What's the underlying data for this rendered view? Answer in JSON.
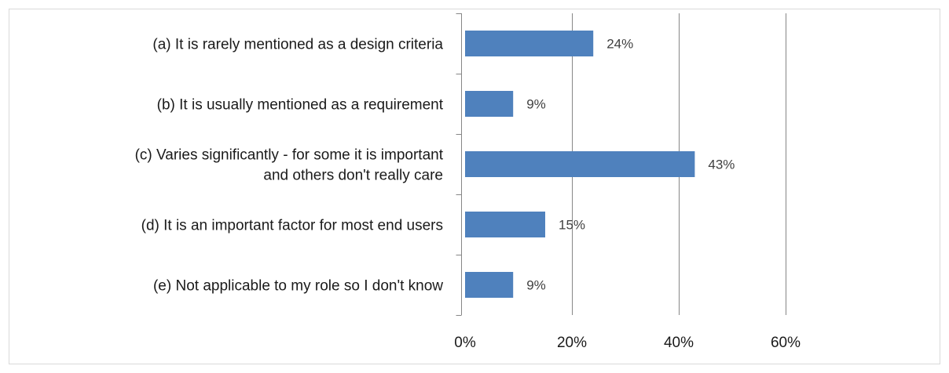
{
  "chart_data": {
    "type": "bar",
    "orientation": "horizontal",
    "categories": [
      "(a) It is rarely mentioned as a design criteria",
      "(b) It is usually mentioned as a requirement",
      "(c) Varies significantly - for some it is important and others don't really care",
      "(d) It is an important factor for most end users",
      "(e) Not applicable to my role so I don't know"
    ],
    "category_lines": [
      [
        "(a) It is rarely mentioned as a design criteria"
      ],
      [
        "(b) It is usually mentioned as a requirement"
      ],
      [
        "(c) Varies significantly - for some it is important",
        "and others don't really care"
      ],
      [
        "(d) It is an important factor for most end users"
      ],
      [
        "(e) Not applicable to my role so I don't know"
      ]
    ],
    "values": [
      24,
      9,
      43,
      15,
      9
    ],
    "data_labels": [
      "24%",
      "9%",
      "43%",
      "15%",
      "9%"
    ],
    "x_ticks": [
      0,
      20,
      40,
      60
    ],
    "x_tick_labels": [
      "0%",
      "20%",
      "40%",
      "60%"
    ],
    "xlim": [
      0,
      60
    ],
    "grid": true,
    "colors": {
      "bar": "#4f81bd",
      "grid": "#868686",
      "axis": "#868686",
      "border": "#d9d9d9"
    }
  }
}
